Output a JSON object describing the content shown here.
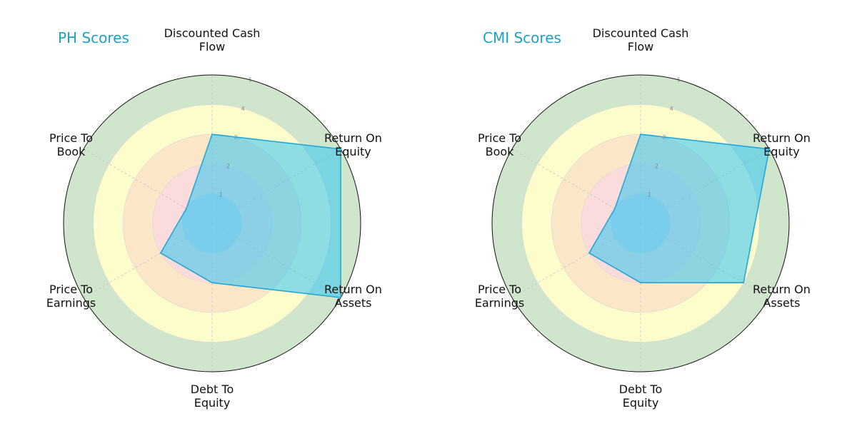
{
  "chart_data": [
    {
      "type": "radar",
      "title": "PH Scores",
      "axes": [
        [
          "Discounted Cash",
          "Flow"
        ],
        [
          "Return On",
          "Equity"
        ],
        [
          "Return On",
          "Assets"
        ],
        [
          "Debt To",
          "Equity"
        ],
        [
          "Price To",
          "Earnings"
        ],
        [
          "Price To",
          "Book"
        ]
      ],
      "values": [
        3,
        5,
        5,
        2,
        2,
        1
      ],
      "rlim": [
        0,
        5
      ],
      "rticks": [
        "1",
        "2",
        "3",
        "4",
        "5"
      ],
      "grid": true
    },
    {
      "type": "radar",
      "title": "CMI Scores",
      "axes": [
        [
          "Discounted Cash",
          "Flow"
        ],
        [
          "Return On",
          "Equity"
        ],
        [
          "Return On",
          "Assets"
        ],
        [
          "Debt To",
          "Equity"
        ],
        [
          "Price To",
          "Earnings"
        ],
        [
          "Price To",
          "Book"
        ]
      ],
      "values": [
        3,
        5,
        4,
        2,
        2,
        1
      ],
      "rlim": [
        0,
        5
      ],
      "rticks": [
        "1",
        "2",
        "3",
        "4",
        "5"
      ],
      "grid": true
    }
  ],
  "colors": {
    "title": "#1ba3c6",
    "series_fill": "#42c8f0",
    "series_stroke": "#23a7d9",
    "band_1": "#ccd8e6",
    "band_2": "#fadcdc",
    "band_3": "#fbe6c8",
    "band_4": "#fdfdcc",
    "band_5": "#d0e6cc",
    "outer_ring": "#111111"
  }
}
